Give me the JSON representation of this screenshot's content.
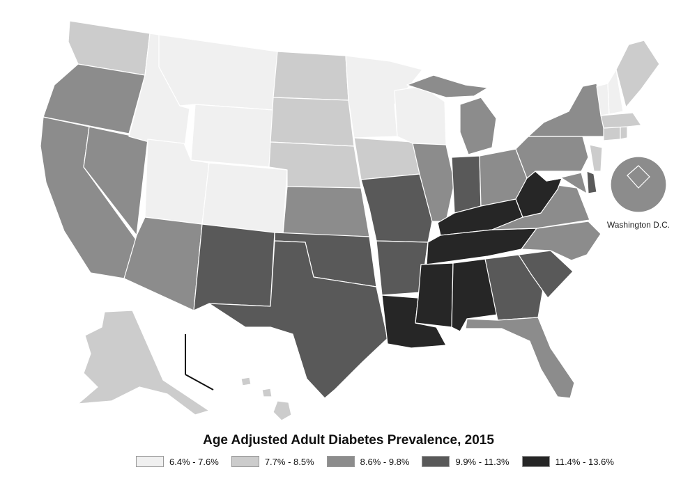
{
  "title": "Age Adjusted Adult Diabetes Prevalence, 2015",
  "inset_label": "Washington D.C.",
  "classes": [
    {
      "id": "c1",
      "label": "6.4% - 7.6%",
      "color": "#f0f0f0"
    },
    {
      "id": "c2",
      "label": "7.7% - 8.5%",
      "color": "#cccccc"
    },
    {
      "id": "c3",
      "label": "8.6% - 9.8%",
      "color": "#8c8c8c"
    },
    {
      "id": "c4",
      "label": "9.9% - 11.3%",
      "color": "#595959"
    },
    {
      "id": "c5",
      "label": "11.4% - 13.6%",
      "color": "#262626"
    }
  ]
}
